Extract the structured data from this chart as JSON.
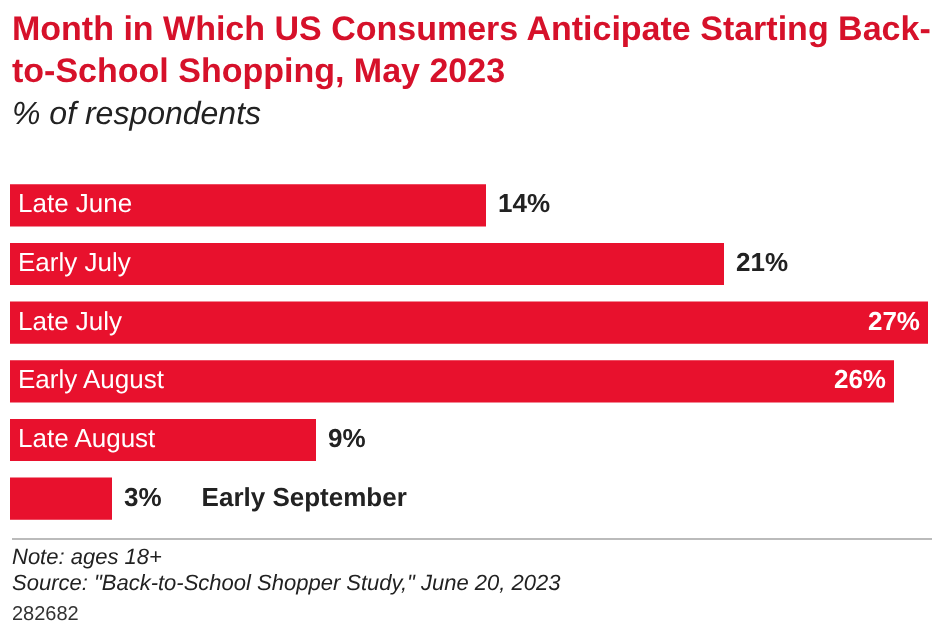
{
  "chart_data": {
    "type": "bar",
    "orientation": "horizontal",
    "title": "Month in Which US Consumers Anticipate Starting Back-to-School Shopping, May 2023",
    "subtitle": "% of respondents",
    "categories": [
      "Late June",
      "Early July",
      "Late July",
      "Early August",
      "Late August",
      "Early September"
    ],
    "values": [
      14,
      21,
      27,
      26,
      9,
      3
    ],
    "value_labels": [
      "14%",
      "21%",
      "27%",
      "26%",
      "9%",
      "3%"
    ],
    "color": "#e8112d",
    "annotations": [
      "Note: ages 18+",
      "Source: \"Back-to-School Shopper Study,\" June 20, 2023",
      "282682"
    ]
  }
}
